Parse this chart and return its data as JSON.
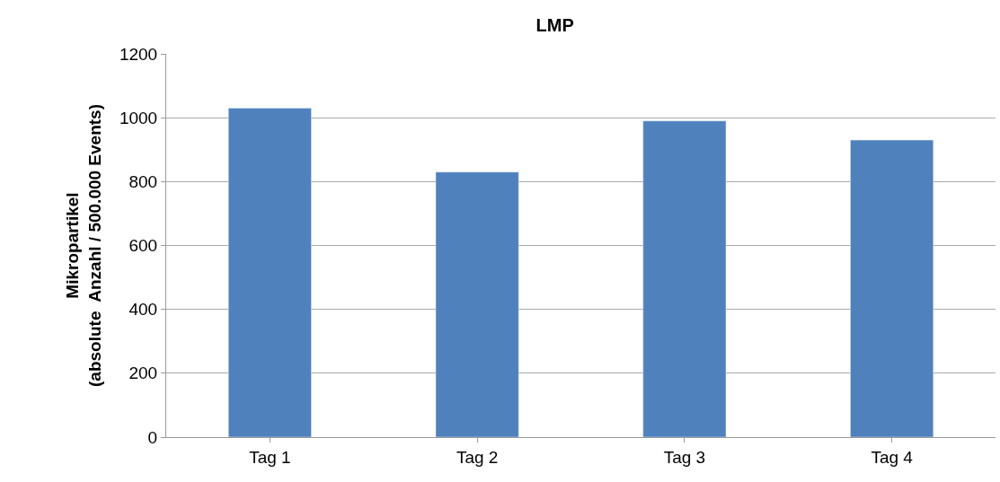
{
  "chart_data": {
    "type": "bar",
    "title": "LMP",
    "ylabel": "Mikropartikel\n(absolute  Anzahl / 500.000 Events)",
    "categories": [
      "Tag 1",
      "Tag 2",
      "Tag 3",
      "Tag 4"
    ],
    "values": [
      1030,
      830,
      990,
      930
    ],
    "color": "#4f81bd",
    "ylim": [
      0,
      1200
    ],
    "yticks": [
      0,
      200,
      400,
      600,
      800,
      1000,
      1200
    ],
    "grid": "y"
  }
}
